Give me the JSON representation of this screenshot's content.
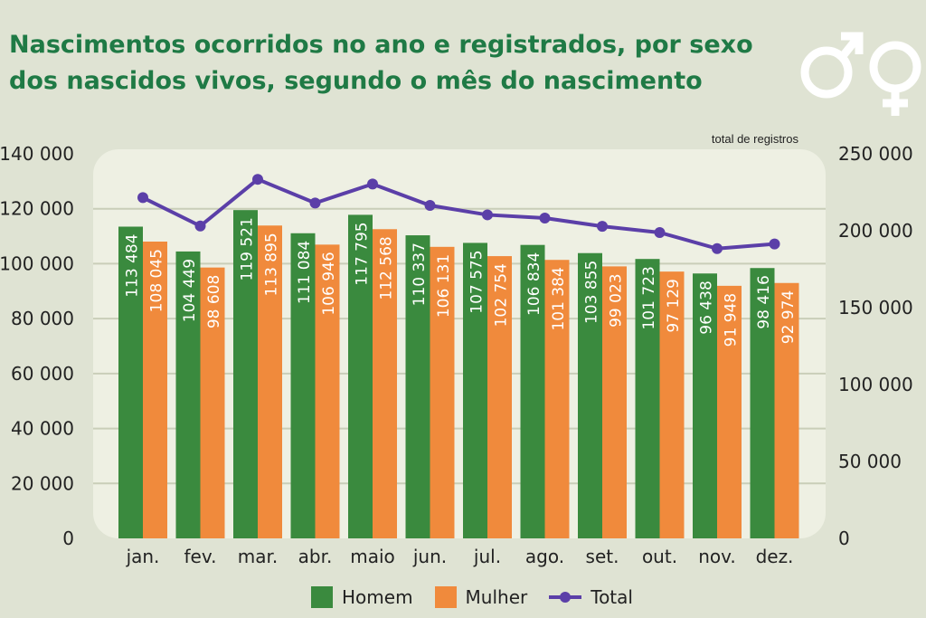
{
  "title": "Nascimentos ocorridos no ano e registrados, por sexo dos nascidos vivos, segundo o mês do nascimento",
  "icons": [
    "male-symbol-icon",
    "female-symbol-icon"
  ],
  "colors": {
    "homem": "#3a8a3e",
    "mulher": "#f08a3c",
    "total": "#5b3fa8",
    "title": "#1f7a45",
    "panel": "#eef0e3"
  },
  "legend": {
    "homem": "Homem",
    "mulher": "Mulher",
    "total": "Total"
  },
  "chart_data": {
    "type": "bar",
    "title": "Nascimentos ocorridos no ano e registrados, por sexo dos nascidos vivos, segundo o mês do nascimento",
    "categories": [
      "jan.",
      "fev.",
      "mar.",
      "abr.",
      "maio",
      "jun.",
      "jul.",
      "ago.",
      "set.",
      "out.",
      "nov.",
      "dez."
    ],
    "series": [
      {
        "name": "Homem",
        "axis": "left",
        "values": [
          113484,
          104449,
          119521,
          111084,
          117795,
          110337,
          107575,
          106834,
          103855,
          101723,
          96438,
          98416
        ],
        "labels": [
          "113 484",
          "104 449",
          "119 521",
          "111 084",
          "117 795",
          "110 337",
          "107 575",
          "106 834",
          "103 855",
          "101 723",
          "96 438",
          "98 416"
        ]
      },
      {
        "name": "Mulher",
        "axis": "left",
        "values": [
          108045,
          98608,
          113895,
          106946,
          112568,
          106131,
          102754,
          101384,
          99023,
          97129,
          91948,
          92974
        ],
        "labels": [
          "108 045",
          "98 608",
          "113 895",
          "106 946",
          "112 568",
          "106 131",
          "102 754",
          "101 384",
          "99 023",
          "97 129",
          "91 948",
          "92 974"
        ]
      },
      {
        "name": "Total",
        "axis": "right",
        "type": "line",
        "values": [
          221529,
          203057,
          233416,
          218030,
          230363,
          216468,
          210329,
          208218,
          202878,
          198852,
          188386,
          191390
        ]
      }
    ],
    "left_axis": {
      "ylim": [
        0,
        140000
      ],
      "ticks": [
        "0",
        "20 000",
        "40 000",
        "60 000",
        "80 000",
        "100 000",
        "120 000",
        "140 000"
      ]
    },
    "right_axis": {
      "label": "total de registros",
      "ylim": [
        0,
        250000
      ],
      "ticks": [
        "0",
        "50 000",
        "100 000",
        "150 000",
        "200 000",
        "250 000"
      ]
    },
    "grid": true,
    "legend_position": "bottom"
  }
}
